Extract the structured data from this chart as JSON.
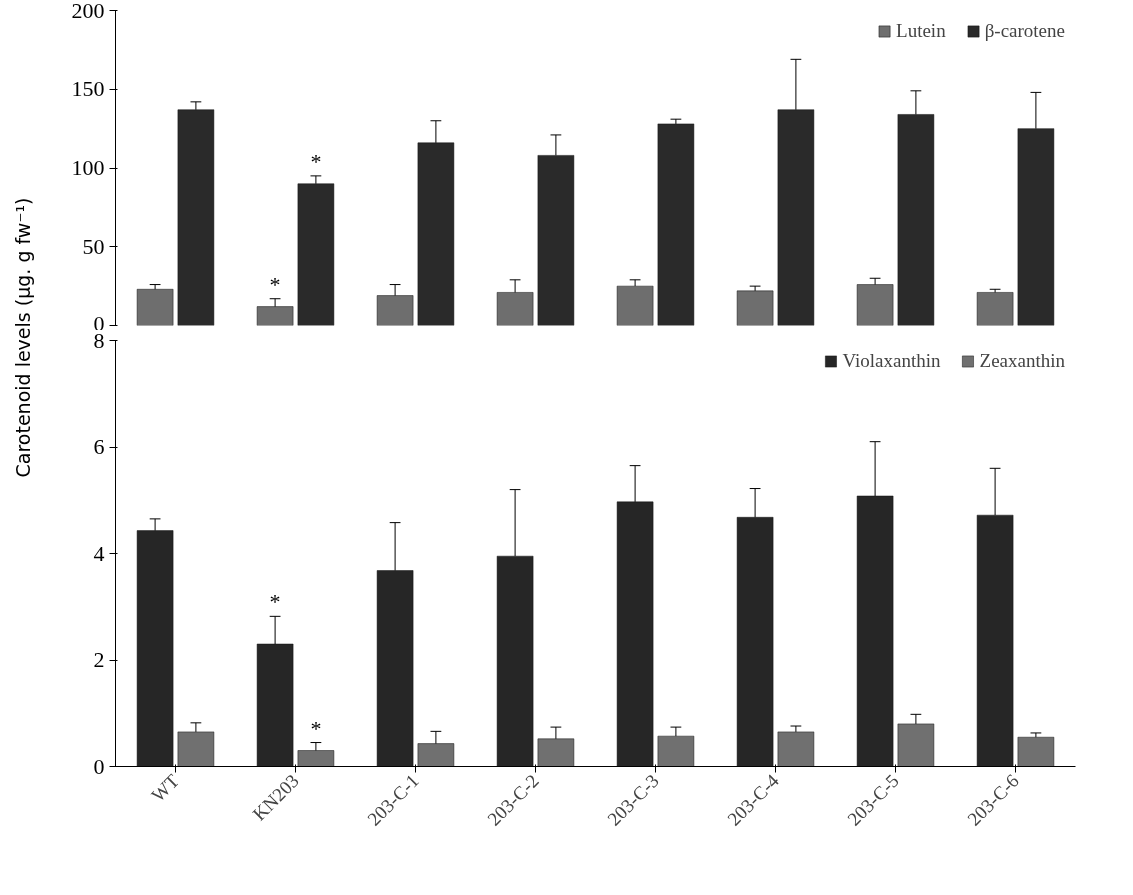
{
  "chart_data": [
    {
      "type": "bar",
      "ylabel": "Carotenoid levels (µg. g fw⁻¹)",
      "categories": [
        "WT",
        "KN203",
        "203-C-1",
        "203-C-2",
        "203-C-3",
        "203-C-4",
        "203-C-5",
        "203-C-6"
      ],
      "series": [
        {
          "name": "Lutein",
          "color": "#6e6e6e",
          "values": [
            23,
            12,
            19,
            21,
            25,
            22,
            26,
            21
          ],
          "errors": [
            [
              23,
              26
            ],
            [
              12,
              17
            ],
            [
              19,
              26
            ],
            [
              21,
              29
            ],
            [
              25,
              29
            ],
            [
              22,
              25
            ],
            [
              26,
              30
            ],
            [
              21,
              23
            ]
          ]
        },
        {
          "name": "β-carotene",
          "color": "#2a2a2a",
          "values": [
            137,
            90,
            116,
            108,
            128,
            137,
            134,
            125
          ],
          "errors": [
            [
              137,
              142
            ],
            [
              90,
              95
            ],
            [
              116,
              130
            ],
            [
              108,
              121
            ],
            [
              128,
              131
            ],
            [
              137,
              169
            ],
            [
              134,
              149
            ],
            [
              125,
              148
            ]
          ]
        }
      ],
      "ylim": [
        0,
        200
      ],
      "yticks": [
        0,
        50,
        100,
        150,
        200
      ],
      "tick_labels": "y",
      "grid": false,
      "legend": "top right",
      "annotations": [
        {
          "text": "*",
          "x": "KN203",
          "y": 12
        },
        {
          "text": "*",
          "x": "KN203",
          "y": 90
        }
      ]
    },
    {
      "type": "bar",
      "categories": [
        "WT",
        "KN203",
        "203-C-1",
        "203-C-2",
        "203-C-3",
        "203-C-4",
        "203-C-5",
        "203-C-6"
      ],
      "series": [
        {
          "name": "Violaxanthin",
          "color": "#262626",
          "values": [
            4.43,
            2.3,
            3.68,
            3.95,
            4.97,
            4.68,
            5.08,
            4.72
          ],
          "errors": [
            [
              4.43,
              4.65
            ],
            [
              2.3,
              2.82
            ],
            [
              3.68,
              4.58
            ],
            [
              3.95,
              5.2
            ],
            [
              4.97,
              5.65
            ],
            [
              4.68,
              5.22
            ],
            [
              5.08,
              6.1
            ],
            [
              4.72,
              5.6
            ]
          ]
        },
        {
          "name": "Zeaxanthin",
          "color": "#707070",
          "values": [
            0.65,
            0.3,
            0.43,
            0.52,
            0.57,
            0.65,
            0.8,
            0.55
          ],
          "errors": [
            [
              0.65,
              0.82
            ],
            [
              0.3,
              0.45
            ],
            [
              0.43,
              0.66
            ],
            [
              0.52,
              0.74
            ],
            [
              0.57,
              0.74
            ],
            [
              0.65,
              0.76
            ],
            [
              0.8,
              0.98
            ],
            [
              0.55,
              0.63
            ]
          ]
        }
      ],
      "ylim": [
        0,
        8
      ],
      "yticks": [
        0,
        2,
        4,
        6,
        8
      ],
      "grid": false,
      "legend": "top right",
      "annotations": [
        {
          "text": "*",
          "x": "KN203",
          "y": 2.3
        },
        {
          "text": "*",
          "x": "KN203",
          "y": 0.3
        }
      ]
    }
  ]
}
